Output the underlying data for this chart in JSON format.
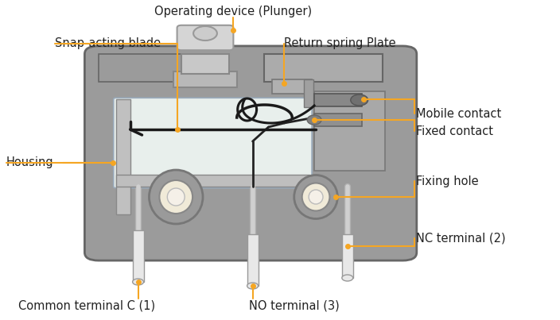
{
  "bg_color": "#ffffff",
  "arrow_color": "#F5A623",
  "body_outer": "#9B9B9B",
  "body_mid": "#ABABAB",
  "body_inner_bg": "#D8D8D8",
  "inner_chamber": "#E8EFEC",
  "plunger_fill": "#D0D0D0",
  "plunger_stem": "#B8B8B8",
  "contact_dark": "#707070",
  "contact_mid": "#909090",
  "terminal_fill": "#E8E8E8",
  "terminal_edge": "#999999",
  "hole_fill": "#F0EAD8",
  "hole_edge": "#888888",
  "blade_color": "#1A1A1A",
  "spring_color": "#1A1A1A",
  "labels": {
    "operating_device": "Operating device (Plunger)",
    "snap_acting": "Snap-acting blade",
    "return_spring": "Return spring Plate",
    "mobile_contact": "Mobile contact",
    "fixed_contact": "Fixed contact",
    "housing": "Housing",
    "fixing_hole": "Fixing hole",
    "nc_terminal": "NC terminal (2)",
    "common_terminal": "Common terminal C (1)",
    "no_terminal": "NO terminal (3)"
  }
}
